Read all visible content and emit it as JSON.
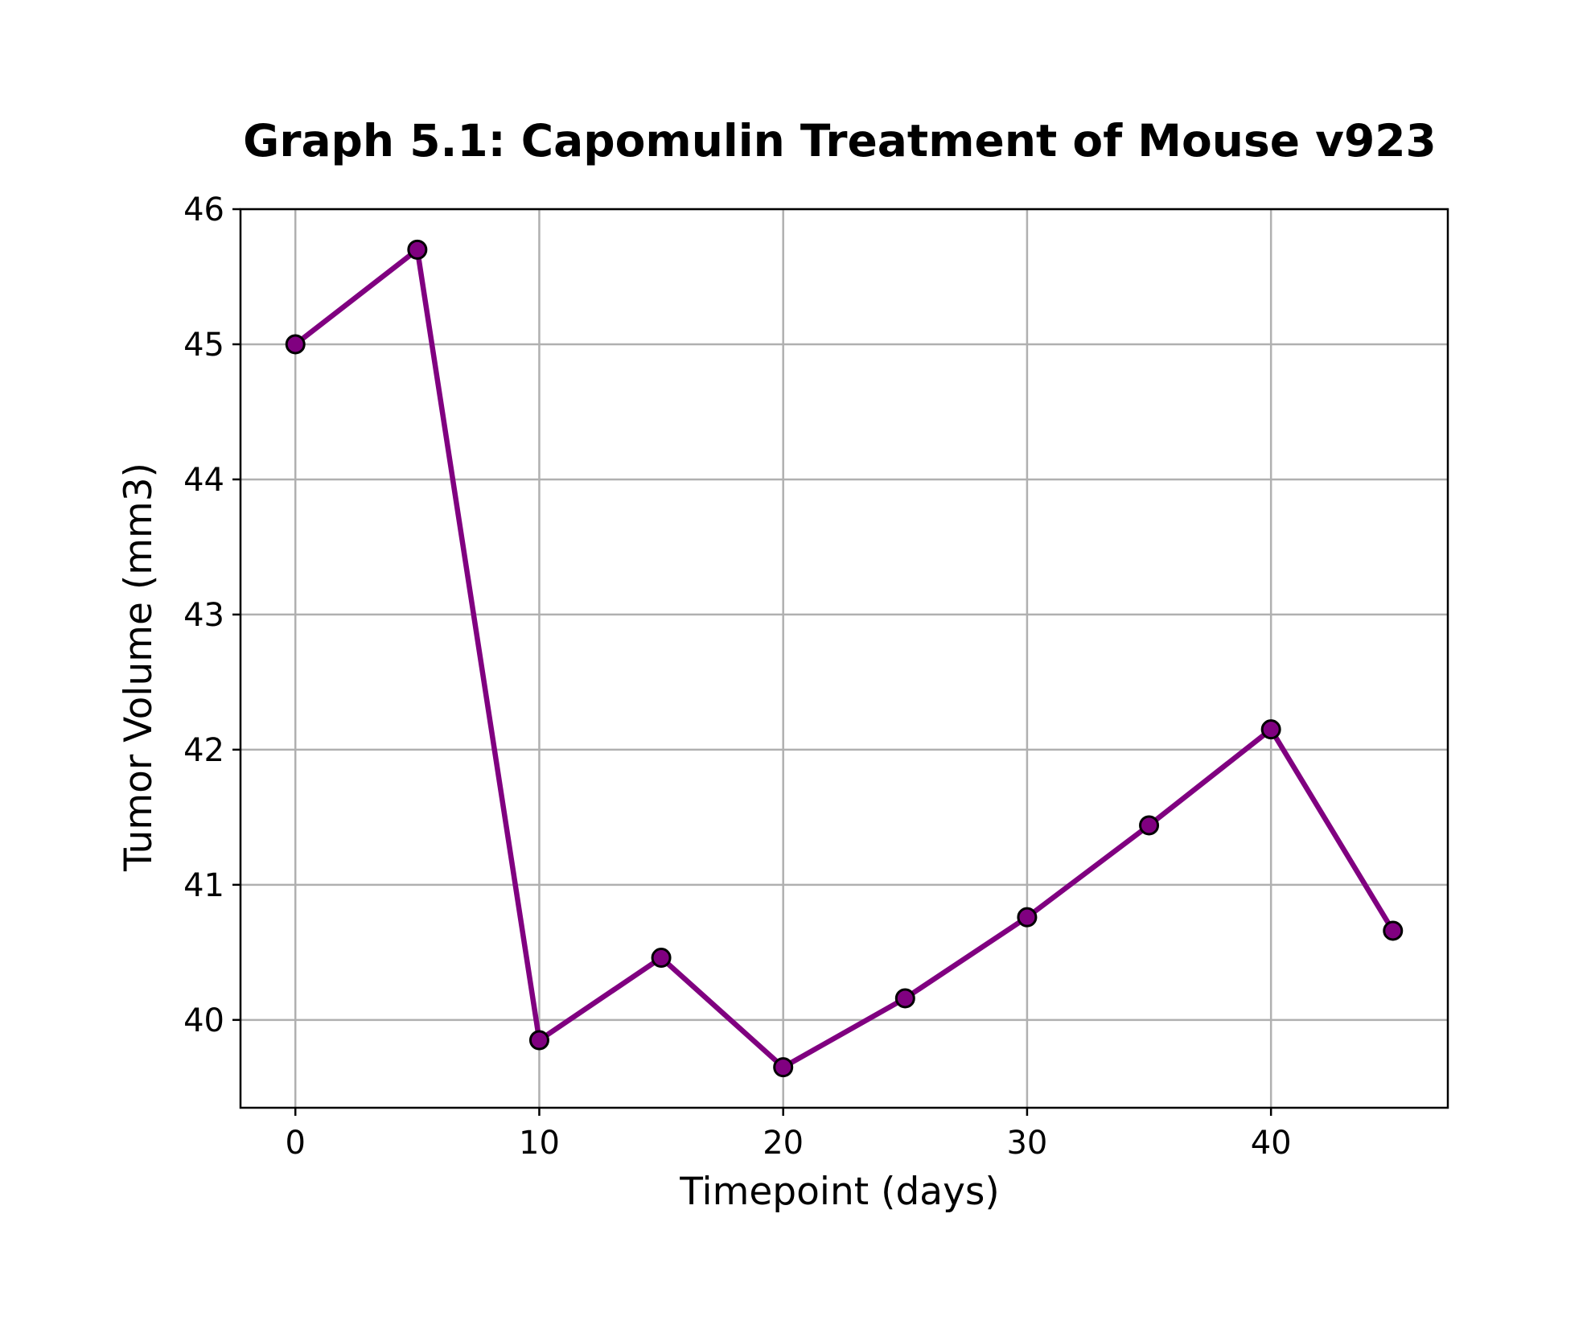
{
  "chart_data": {
    "type": "line",
    "title": "Graph 5.1: Capomulin Treatment of Mouse v923",
    "xlabel": "Timepoint (days)",
    "ylabel": "Tumor Volume (mm3)",
    "x": [
      0,
      5,
      10,
      15,
      20,
      25,
      30,
      35,
      40,
      45
    ],
    "series": [
      {
        "values": [
          45.0,
          45.7,
          39.85,
          40.46,
          39.65,
          40.16,
          40.76,
          41.44,
          42.15,
          40.66
        ],
        "color": "#800080",
        "marker": "circle",
        "marker_edge_color": "#000000"
      }
    ],
    "xlim": [
      -2.25,
      47.25
    ],
    "ylim": [
      39.35,
      46.0
    ],
    "xticks": [
      0,
      10,
      20,
      30,
      40
    ],
    "yticks": [
      40,
      41,
      42,
      43,
      44,
      45,
      46
    ],
    "grid": true,
    "legend": false
  }
}
